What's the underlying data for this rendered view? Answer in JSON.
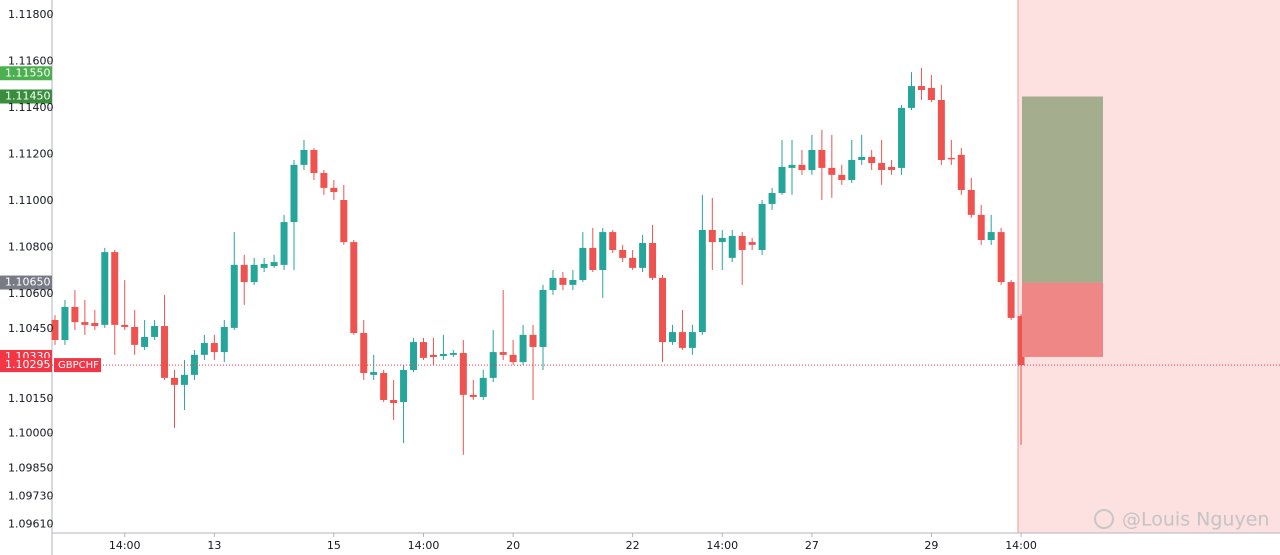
{
  "chart_data": {
    "type": "candlestick",
    "symbol": "GBPCHF",
    "up_color": "#26a69a",
    "down_color": "#ef5350",
    "ylim": [
      1.09573,
      1.11865
    ],
    "xlim": [
      -0.3,
      123
    ],
    "yticks": [
      {
        "value": 1.118,
        "label": "1.11800"
      },
      {
        "value": 1.116,
        "label": "1.11600"
      },
      {
        "value": 1.114,
        "label": "1.11400"
      },
      {
        "value": 1.112,
        "label": "1.11200"
      },
      {
        "value": 1.11,
        "label": "1.11000"
      },
      {
        "value": 1.108,
        "label": "1.10800"
      },
      {
        "value": 1.106,
        "label": "1.10600"
      },
      {
        "value": 1.1045,
        "label": "1.10450"
      },
      {
        "value": 1.1015,
        "label": "1.10150"
      },
      {
        "value": 1.1,
        "label": "1.10000"
      },
      {
        "value": 1.0985,
        "label": "1.09850"
      },
      {
        "value": 1.0973,
        "label": "1.09730"
      },
      {
        "value": 1.0961,
        "label": "1.09610"
      }
    ],
    "xticks": [
      {
        "value": 7,
        "label": "14:00"
      },
      {
        "value": 16,
        "label": "13"
      },
      {
        "value": 28,
        "label": "15"
      },
      {
        "value": 37,
        "label": "14:00"
      },
      {
        "value": 46,
        "label": "20"
      },
      {
        "value": 58,
        "label": "22"
      },
      {
        "value": 67,
        "label": "14:00"
      },
      {
        "value": 76,
        "label": "27"
      },
      {
        "value": 88,
        "label": "29"
      },
      {
        "value": 97,
        "label": "14:00"
      }
    ],
    "open": [
      1.10489,
      1.10403,
      1.10545,
      1.1048,
      1.10476,
      1.10468,
      1.10781,
      1.10468,
      1.10459,
      1.10373,
      1.10416,
      1.10463,
      1.1024,
      1.1021,
      1.10253,
      1.10339,
      1.1039,
      1.10351,
      1.10455,
      1.10726,
      1.10652,
      1.10713,
      1.10721,
      1.10726,
      1.1091,
      1.11156,
      1.1122,
      1.11121,
      1.11057,
      1.11005,
      1.10824,
      1.10433,
      1.10253,
      1.10261,
      1.10145,
      1.10136,
      1.10274,
      1.10394,
      1.10339,
      1.10334,
      1.10339,
      1.10347,
      1.10167,
      1.10158,
      1.1024,
      1.10351,
      1.10339,
      1.10308,
      1.10425,
      1.10373,
      1.10618,
      1.1067,
      1.1064,
      1.10661,
      1.10799,
      1.10704,
      1.10867,
      1.1079,
      1.10756,
      1.10713,
      1.1082,
      1.1067,
      1.10394,
      1.10437,
      1.10369,
      1.10437,
      1.10876,
      1.10824,
      1.10756,
      1.1085,
      1.10824,
      1.1079,
      1.10988,
      1.11035,
      1.11143,
      1.11156,
      1.11134,
      1.1122,
      1.11143,
      1.11113,
      1.11091,
      1.11177,
      1.1119,
      1.11164,
      1.11147,
      1.11143,
      1.11401,
      1.11495,
      1.11487,
      1.11435,
      1.11186,
      1.11199,
      1.11048,
      1.10941,
      1.10833,
      1.10867,
      1.10652,
      1.10506
    ],
    "high": [
      1.1051,
      1.10575,
      1.10618,
      1.10575,
      1.10532,
      1.10799,
      1.1079,
      1.10661,
      1.10532,
      1.10489,
      1.10489,
      1.10597,
      1.10274,
      1.10317,
      1.1036,
      1.10425,
      1.10425,
      1.10489,
      1.10867,
      1.10769,
      1.10756,
      1.10756,
      1.10769,
      1.10941,
      1.11177,
      1.11263,
      1.11229,
      1.11134,
      1.11091,
      1.1107,
      1.10833,
      1.10489,
      1.10339,
      1.10274,
      1.10231,
      1.10296,
      1.10412,
      1.10412,
      1.10412,
      1.10425,
      1.1036,
      1.10403,
      1.10231,
      1.10274,
      1.10446,
      1.10618,
      1.10403,
      1.10468,
      1.10468,
      1.1064,
      1.10704,
      1.10695,
      1.10704,
      1.10867,
      1.10885,
      1.10885,
      1.10876,
      1.10812,
      1.1079,
      1.10855,
      1.10898,
      1.10683,
      1.10468,
      1.10532,
      1.10468,
      1.11027,
      1.11014,
      1.10876,
      1.10876,
      1.10867,
      1.10842,
      1.11005,
      1.11057,
      1.11263,
      1.11263,
      1.1122,
      1.11285,
      1.11306,
      1.11285,
      1.11156,
      1.11263,
      1.11285,
      1.1122,
      1.11263,
      1.11177,
      1.11414,
      1.11555,
      1.11573,
      1.11543,
      1.115,
      1.11263,
      1.11229,
      1.111,
      1.10984,
      1.10941,
      1.10885,
      1.10661,
      1.10514
    ],
    "low": [
      1.10382,
      1.10382,
      1.10446,
      1.10425,
      1.10446,
      1.10455,
      1.10339,
      1.10446,
      1.10339,
      1.1036,
      1.10403,
      1.10231,
      1.10025,
      1.10102,
      1.10231,
      1.10317,
      1.10317,
      1.10308,
      1.10446,
      1.10554,
      1.1064,
      1.10695,
      1.10713,
      1.10704,
      1.10704,
      1.11134,
      1.11091,
      1.11027,
      1.11005,
      1.10812,
      1.10425,
      1.10231,
      1.10231,
      1.10136,
      1.10059,
      1.0996,
      1.10265,
      1.10317,
      1.10296,
      1.10317,
      1.1033,
      1.09909,
      1.10145,
      1.10145,
      1.10222,
      1.10317,
      1.10296,
      1.10296,
      1.10145,
      1.10274,
      1.10597,
      1.10618,
      1.10618,
      1.10652,
      1.10695,
      1.10584,
      1.10777,
      1.10738,
      1.10704,
      1.10695,
      1.10661,
      1.10308,
      1.10382,
      1.1036,
      1.10339,
      1.10425,
      1.10704,
      1.10704,
      1.10738,
      1.1064,
      1.1079,
      1.10769,
      1.10962,
      1.11027,
      1.11027,
      1.11113,
      1.11113,
      1.11005,
      1.11014,
      1.1107,
      1.11078,
      1.11156,
      1.11134,
      1.1107,
      1.11113,
      1.11113,
      1.11392,
      1.11435,
      1.11426,
      1.11156,
      1.11156,
      1.11027,
      1.10928,
      1.10812,
      1.10812,
      1.1064,
      1.10489,
      1.09952
    ],
    "close": [
      1.10403,
      1.10545,
      1.1048,
      1.10468,
      1.10463,
      1.10781,
      1.10468,
      1.10459,
      1.10382,
      1.10416,
      1.10463,
      1.1024,
      1.1021,
      1.10253,
      1.10339,
      1.1039,
      1.10351,
      1.10459,
      1.10726,
      1.10652,
      1.10726,
      1.1073,
      1.10738,
      1.1091,
      1.11156,
      1.1122,
      1.11121,
      1.11057,
      1.11039,
      1.10824,
      1.10433,
      1.10261,
      1.10265,
      1.10145,
      1.10132,
      1.10274,
      1.10394,
      1.10326,
      1.1033,
      1.10343,
      1.10347,
      1.10167,
      1.10158,
      1.1024,
      1.10351,
      1.10339,
      1.10308,
      1.10425,
      1.10373,
      1.10618,
      1.1067,
      1.1064,
      1.10661,
      1.10799,
      1.10704,
      1.10867,
      1.1079,
      1.10756,
      1.10713,
      1.1082,
      1.1067,
      1.10394,
      1.10437,
      1.10369,
      1.10437,
      1.10876,
      1.10824,
      1.10842,
      1.1085,
      1.1079,
      1.10812,
      1.10988,
      1.11035,
      1.11147,
      1.11156,
      1.11134,
      1.1122,
      1.11143,
      1.11113,
      1.11091,
      1.11177,
      1.1119,
      1.11164,
      1.11134,
      1.11134,
      1.11401,
      1.11495,
      1.11478,
      1.11435,
      1.11177,
      1.1118,
      1.11048,
      1.10941,
      1.10833,
      1.10867,
      1.10652,
      1.10498,
      1.10295
    ],
    "price_labels": [
      {
        "value": 1.1155,
        "label": "1.11550",
        "color": "#4caf50"
      },
      {
        "value": 1.1145,
        "label": "1.11450",
        "color": "#388e3c"
      },
      {
        "value": 1.1065,
        "label": "1.10650",
        "color": "#787b86"
      },
      {
        "value": 1.1033,
        "label": "1.10330",
        "color": "#f23645"
      },
      {
        "value": 1.10295,
        "label": "1.10295",
        "color": "#f23645"
      }
    ],
    "position": {
      "target": 1.1145,
      "entry": 1.1065,
      "stop": 1.1033
    },
    "watermark": "@Louis Nguyen"
  }
}
